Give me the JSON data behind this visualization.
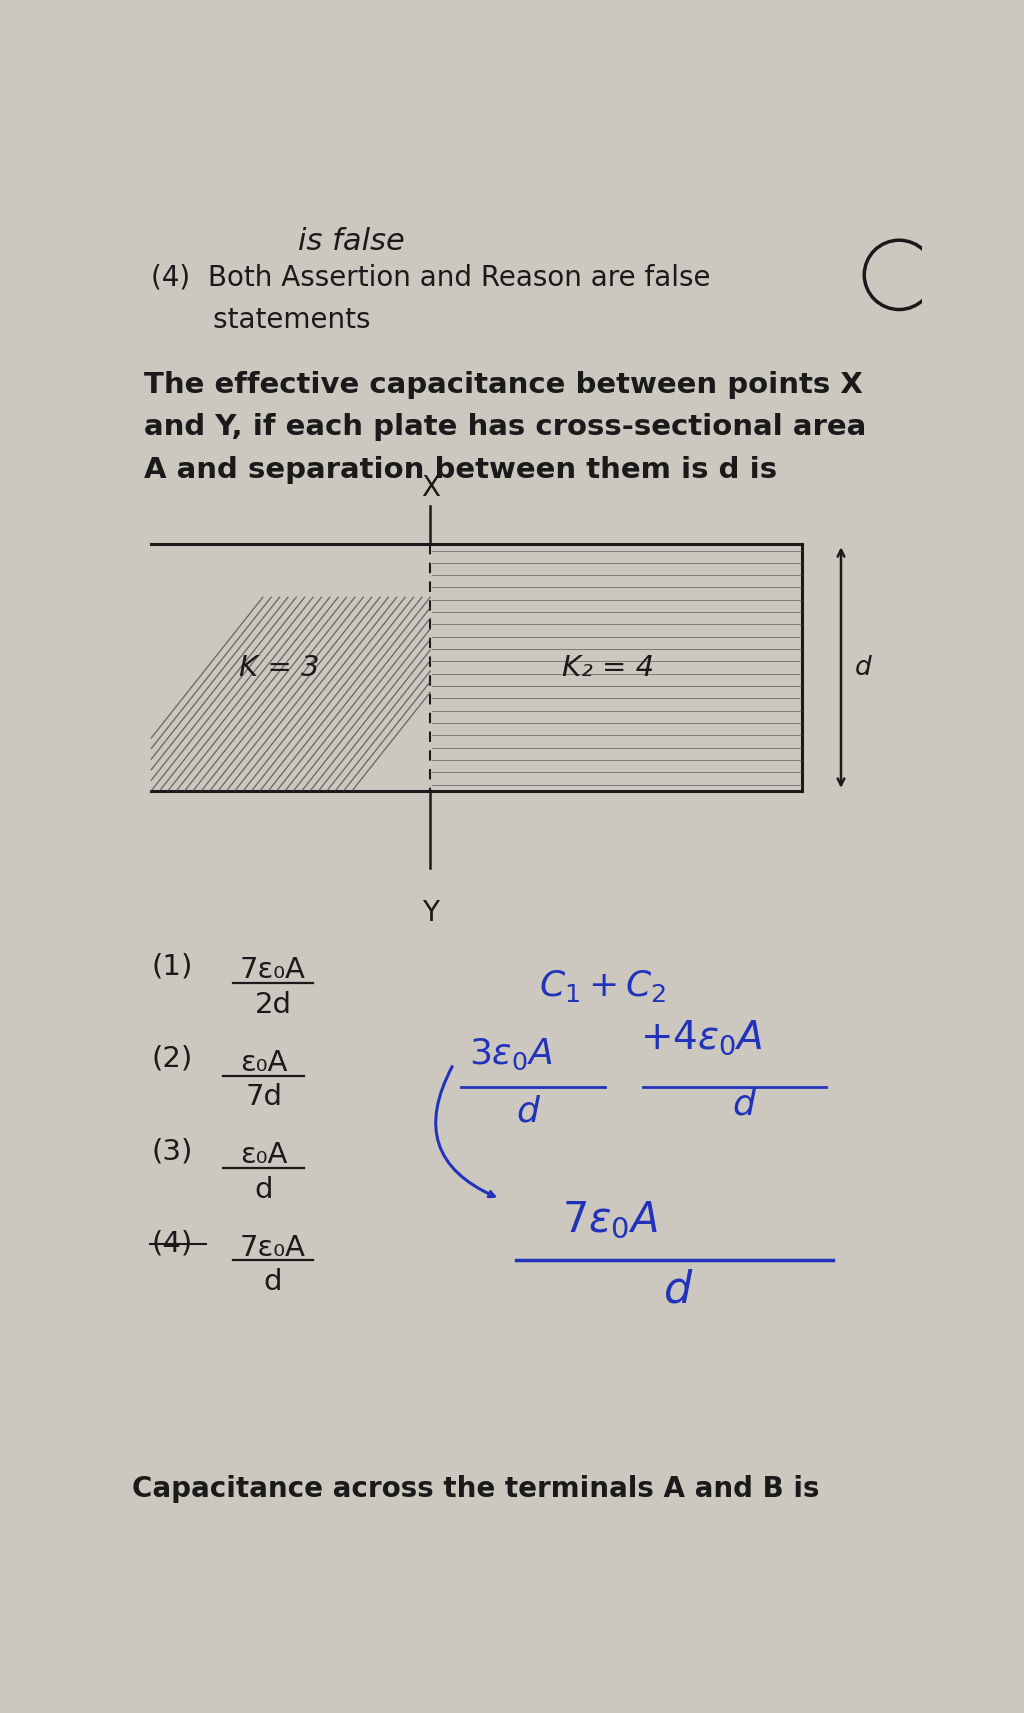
{
  "bg_color": "#ccc8c0",
  "text_color": "#1a1a1a",
  "title_line1": "is false",
  "option4_text1": "(4)  Both Assertion and Reason are false",
  "option4_text2": "       statements",
  "question_line1": "The effective capacitance between points X",
  "question_line2": "and Y, if each plate has cross-sectional area",
  "question_line3": "A and separation between them is d is",
  "x_label": "X",
  "y_label": "Y",
  "k1_label": "K = 3",
  "k2_label": "K₂ = 4",
  "d_label": "d",
  "opt1_prefix": "(1)",
  "opt1_num": "7ε₀A",
  "opt1_den": "2d",
  "opt2_prefix": "(2)",
  "opt2_num": "ε₀A",
  "opt2_den": "7d",
  "opt3_prefix": "(3)",
  "opt3_num": "ε₀A",
  "opt3_den": "d",
  "opt4_prefix": "(4)",
  "opt4_num": "7ε₀A",
  "opt4_den": "d",
  "footer": "Capacitance across the terminals A and B is",
  "blue_color": "#2233bb",
  "dark_color": "#333333"
}
